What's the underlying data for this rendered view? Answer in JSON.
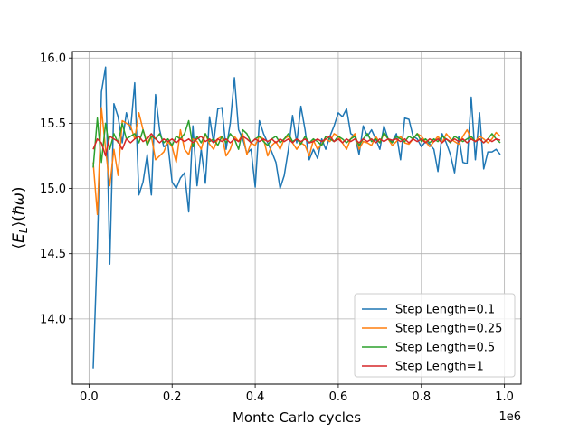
{
  "chart_data": {
    "type": "line",
    "xlabel": "Monte Carlo cycles",
    "ylabel": "⟨E_L⟩(ℏω)",
    "x_scale_label": "1e6",
    "xlim": [
      -40000,
      1040000
    ],
    "ylim": [
      13.5,
      16.05
    ],
    "xticks": [
      0.0,
      0.2,
      0.4,
      0.6,
      0.8,
      1.0
    ],
    "xtick_labels": [
      "0.0",
      "0.2",
      "0.4",
      "0.6",
      "0.8",
      "1.0"
    ],
    "yticks": [
      14.0,
      14.5,
      15.0,
      15.5,
      16.0
    ],
    "ytick_labels": [
      "14.0",
      "14.5",
      "15.0",
      "15.5",
      "16.0"
    ],
    "grid": true,
    "legend_position": "lower-right",
    "x": [
      10000,
      20000,
      30000,
      40000,
      50000,
      60000,
      70000,
      80000,
      90000,
      100000,
      110000,
      120000,
      130000,
      140000,
      150000,
      160000,
      170000,
      180000,
      190000,
      200000,
      210000,
      220000,
      230000,
      240000,
      250000,
      260000,
      270000,
      280000,
      290000,
      300000,
      310000,
      320000,
      330000,
      340000,
      350000,
      360000,
      370000,
      380000,
      390000,
      400000,
      410000,
      420000,
      430000,
      440000,
      450000,
      460000,
      470000,
      480000,
      490000,
      500000,
      510000,
      520000,
      530000,
      540000,
      550000,
      560000,
      570000,
      580000,
      590000,
      600000,
      610000,
      620000,
      630000,
      640000,
      650000,
      660000,
      670000,
      680000,
      690000,
      700000,
      710000,
      720000,
      730000,
      740000,
      750000,
      760000,
      770000,
      780000,
      790000,
      800000,
      810000,
      820000,
      830000,
      840000,
      850000,
      860000,
      870000,
      880000,
      890000,
      900000,
      910000,
      920000,
      930000,
      940000,
      950000,
      960000,
      970000,
      980000,
      990000
    ],
    "series": [
      {
        "name": "Step Length=0.1",
        "color": "#1f77b4",
        "values": [
          13.62,
          14.55,
          15.74,
          15.93,
          14.42,
          15.65,
          15.55,
          15.35,
          15.58,
          15.45,
          15.81,
          14.95,
          15.05,
          15.26,
          14.95,
          15.72,
          15.45,
          15.32,
          15.34,
          15.05,
          15.0,
          15.08,
          15.12,
          14.82,
          15.48,
          15.02,
          15.3,
          15.04,
          15.55,
          15.35,
          15.61,
          15.62,
          15.3,
          15.5,
          15.85,
          15.45,
          15.38,
          15.27,
          15.3,
          15.01,
          15.52,
          15.42,
          15.35,
          15.28,
          15.2,
          15.0,
          15.1,
          15.3,
          15.56,
          15.35,
          15.63,
          15.45,
          15.22,
          15.3,
          15.23,
          15.38,
          15.3,
          15.4,
          15.48,
          15.58,
          15.55,
          15.61,
          15.42,
          15.4,
          15.26,
          15.48,
          15.4,
          15.45,
          15.38,
          15.3,
          15.48,
          15.38,
          15.36,
          15.42,
          15.22,
          15.54,
          15.53,
          15.4,
          15.38,
          15.32,
          15.36,
          15.34,
          15.3,
          15.13,
          15.42,
          15.35,
          15.26,
          15.12,
          15.4,
          15.2,
          15.19,
          15.7,
          15.22,
          15.58,
          15.15,
          15.28,
          15.28,
          15.3,
          15.26
        ]
      },
      {
        "name": "Step Length=0.25",
        "color": "#ff7f0e",
        "values": [
          15.2,
          14.8,
          15.62,
          15.3,
          15.02,
          15.3,
          15.1,
          15.52,
          15.5,
          15.48,
          15.38,
          15.58,
          15.45,
          15.35,
          15.4,
          15.22,
          15.25,
          15.28,
          15.36,
          15.32,
          15.2,
          15.45,
          15.3,
          15.26,
          15.38,
          15.36,
          15.3,
          15.42,
          15.34,
          15.3,
          15.38,
          15.4,
          15.25,
          15.3,
          15.4,
          15.36,
          15.42,
          15.26,
          15.35,
          15.33,
          15.4,
          15.38,
          15.25,
          15.33,
          15.36,
          15.3,
          15.38,
          15.4,
          15.35,
          15.3,
          15.35,
          15.33,
          15.25,
          15.37,
          15.3,
          15.34,
          15.38,
          15.36,
          15.42,
          15.4,
          15.35,
          15.3,
          15.38,
          15.42,
          15.3,
          15.36,
          15.35,
          15.33,
          15.4,
          15.35,
          15.42,
          15.38,
          15.33,
          15.36,
          15.4,
          15.35,
          15.34,
          15.38,
          15.42,
          15.4,
          15.36,
          15.32,
          15.36,
          15.4,
          15.35,
          15.42,
          15.38,
          15.36,
          15.34,
          15.4,
          15.45,
          15.38,
          15.36,
          15.4,
          15.38,
          15.35,
          15.38,
          15.43,
          15.4
        ]
      },
      {
        "name": "Step Length=0.5",
        "color": "#2ca02c",
        "values": [
          15.16,
          15.54,
          15.2,
          15.5,
          15.3,
          15.42,
          15.35,
          15.5,
          15.38,
          15.4,
          15.42,
          15.35,
          15.45,
          15.33,
          15.4,
          15.38,
          15.42,
          15.35,
          15.38,
          15.33,
          15.4,
          15.38,
          15.42,
          15.52,
          15.32,
          15.4,
          15.35,
          15.42,
          15.36,
          15.38,
          15.33,
          15.4,
          15.35,
          15.42,
          15.38,
          15.3,
          15.45,
          15.42,
          15.35,
          15.38,
          15.4,
          15.36,
          15.33,
          15.38,
          15.4,
          15.35,
          15.38,
          15.42,
          15.36,
          15.38,
          15.34,
          15.4,
          15.35,
          15.38,
          15.36,
          15.33,
          15.4,
          15.38,
          15.36,
          15.4,
          15.38,
          15.35,
          15.38,
          15.4,
          15.33,
          15.38,
          15.42,
          15.36,
          15.38,
          15.35,
          15.43,
          15.38,
          15.35,
          15.4,
          15.38,
          15.36,
          15.4,
          15.38,
          15.42,
          15.36,
          15.38,
          15.35,
          15.38,
          15.36,
          15.4,
          15.38,
          15.35,
          15.4,
          15.38,
          15.36,
          15.38,
          15.4,
          15.36,
          15.38,
          15.35,
          15.38,
          15.42,
          15.38,
          15.35
        ]
      },
      {
        "name": "Step Length=1",
        "color": "#d62728",
        "values": [
          15.3,
          15.38,
          15.35,
          15.25,
          15.4,
          15.38,
          15.36,
          15.3,
          15.38,
          15.35,
          15.38,
          15.4,
          15.36,
          15.38,
          15.42,
          15.38,
          15.35,
          15.38,
          15.36,
          15.38,
          15.35,
          15.38,
          15.36,
          15.38,
          15.35,
          15.38,
          15.4,
          15.36,
          15.38,
          15.35,
          15.38,
          15.36,
          15.38,
          15.35,
          15.38,
          15.36,
          15.4,
          15.38,
          15.35,
          15.38,
          15.36,
          15.38,
          15.36,
          15.38,
          15.35,
          15.38,
          15.36,
          15.38,
          15.35,
          15.38,
          15.36,
          15.38,
          15.35,
          15.36,
          15.38,
          15.36,
          15.38,
          15.4,
          15.36,
          15.38,
          15.35,
          15.38,
          15.36,
          15.38,
          15.35,
          15.38,
          15.36,
          15.38,
          15.35,
          15.38,
          15.36,
          15.38,
          15.37,
          15.38,
          15.36,
          15.38,
          15.35,
          15.38,
          15.36,
          15.38,
          15.35,
          15.38,
          15.36,
          15.38,
          15.35,
          15.38,
          15.36,
          15.38,
          15.36,
          15.38,
          15.35,
          15.38,
          15.36,
          15.38,
          15.35,
          15.38,
          15.36,
          15.38,
          15.37
        ]
      }
    ]
  }
}
